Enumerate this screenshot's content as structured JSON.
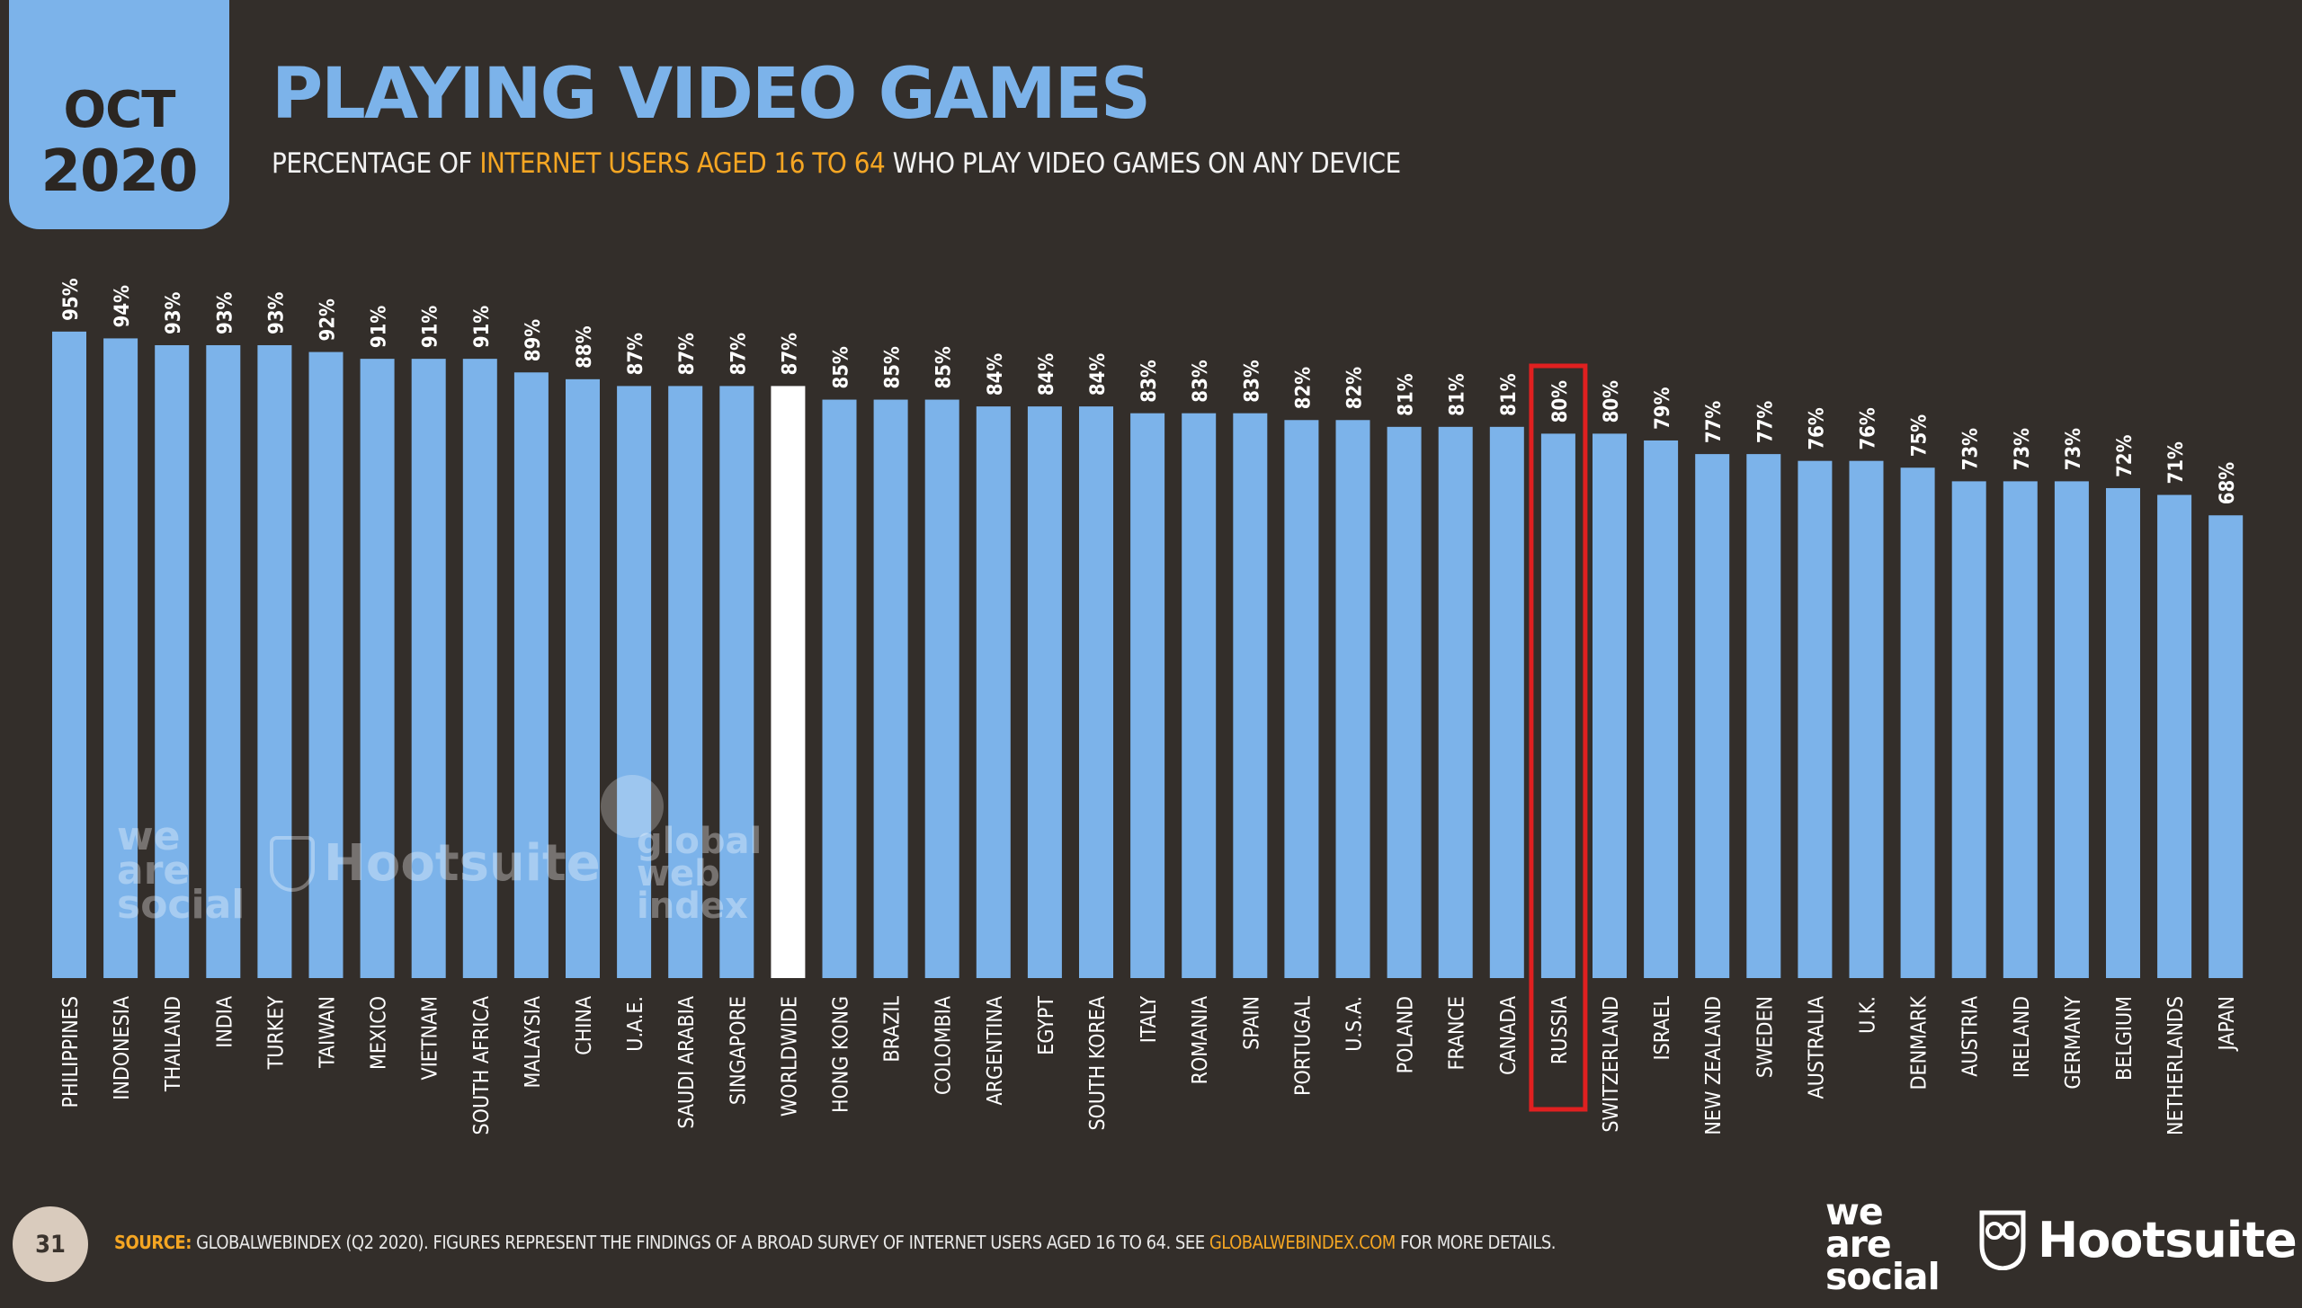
{
  "header": {
    "date_month": "OCT",
    "date_year": "2020",
    "title": "PLAYING VIDEO GAMES",
    "subtitle_pre": "PERCENTAGE OF ",
    "subtitle_highlight": "INTERNET USERS AGED 16 TO 64",
    "subtitle_post": " WHO PLAY VIDEO GAMES ON ANY DEVICE"
  },
  "chart_data": {
    "type": "bar",
    "categories": [
      "PHILIPPINES",
      "INDONESIA",
      "THAILAND",
      "INDIA",
      "TURKEY",
      "TAIWAN",
      "MEXICO",
      "VIETNAM",
      "SOUTH AFRICA",
      "MALAYSIA",
      "CHINA",
      "U.A.E.",
      "SAUDI ARABIA",
      "SINGAPORE",
      "WORLDWIDE",
      "HONG KONG",
      "BRAZIL",
      "COLOMBIA",
      "ARGENTINA",
      "EGYPT",
      "SOUTH KOREA",
      "ITALY",
      "ROMANIA",
      "SPAIN",
      "PORTUGAL",
      "U.S.A.",
      "POLAND",
      "FRANCE",
      "CANADA",
      "RUSSIA",
      "SWITZERLAND",
      "ISRAEL",
      "NEW ZEALAND",
      "SWEDEN",
      "AUSTRALIA",
      "U.K.",
      "DENMARK",
      "AUSTRIA",
      "IRELAND",
      "GERMANY",
      "BELGIUM",
      "NETHERLANDS",
      "JAPAN"
    ],
    "values": [
      95,
      94,
      93,
      93,
      93,
      92,
      91,
      91,
      91,
      89,
      88,
      87,
      87,
      87,
      87,
      85,
      85,
      85,
      84,
      84,
      84,
      83,
      83,
      83,
      82,
      82,
      81,
      81,
      81,
      80,
      80,
      79,
      77,
      77,
      76,
      76,
      75,
      73,
      73,
      73,
      72,
      71,
      68
    ],
    "value_labels": [
      "95%",
      "94%",
      "93%",
      "93%",
      "93%",
      "92%",
      "91%",
      "91%",
      "91%",
      "89%",
      "88%",
      "87%",
      "87%",
      "87%",
      "87%",
      "85%",
      "85%",
      "85%",
      "84%",
      "84%",
      "84%",
      "83%",
      "83%",
      "83%",
      "82%",
      "82%",
      "81%",
      "81%",
      "81%",
      "80%",
      "80%",
      "79%",
      "77%",
      "77%",
      "76%",
      "76%",
      "75%",
      "73%",
      "73%",
      "73%",
      "72%",
      "71%",
      "68%"
    ],
    "highlight_bar": "WORLDWIDE",
    "outlined_bar": "RUSSIA",
    "bar_color": "#7cb3ea",
    "highlight_color": "#ffffff",
    "outline_color": "#e02020",
    "ylim": [
      0,
      100
    ]
  },
  "watermarks": {
    "was": [
      "we",
      "are",
      "social"
    ],
    "hootsuite": "Hootsuite",
    "gwi": [
      "global",
      "web",
      "index"
    ]
  },
  "footer": {
    "page_number": "31",
    "source_label": "SOURCE:",
    "source_text": " GLOBALWEBINDEX (Q2 2020). FIGURES REPRESENT THE FINDINGS OF A BROAD SURVEY OF INTERNET USERS AGED 16 TO 64. SEE ",
    "source_link": "GLOBALWEBINDEX.COM",
    "source_tail": " FOR MORE DETAILS.",
    "logo_was": [
      "we",
      "are",
      "social"
    ],
    "logo_hootsuite": "Hootsuite"
  },
  "colors": {
    "background": "#332e2a",
    "accent": "#7cb3ea",
    "highlight_text": "#f5a623"
  }
}
